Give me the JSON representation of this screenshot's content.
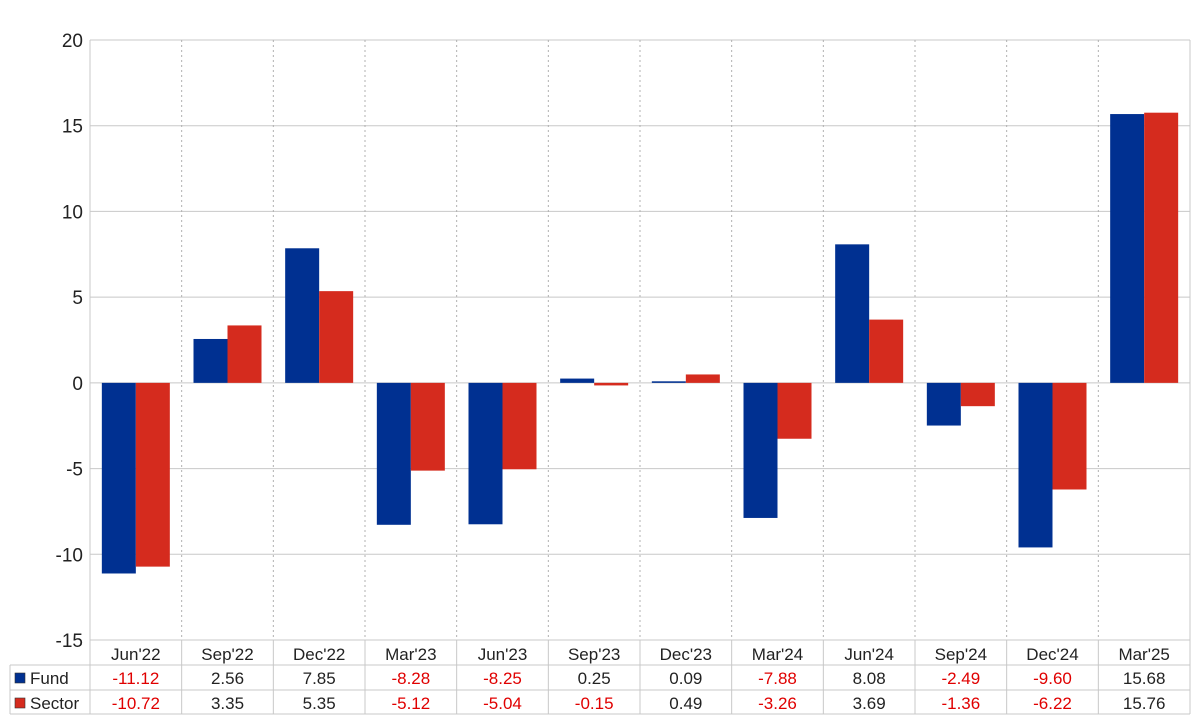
{
  "chart_data": {
    "type": "bar",
    "categories": [
      "Jun'22",
      "Sep'22",
      "Dec'22",
      "Mar'23",
      "Jun'23",
      "Sep'23",
      "Dec'23",
      "Mar'24",
      "Jun'24",
      "Sep'24",
      "Dec'24",
      "Mar'25"
    ],
    "series": [
      {
        "name": "Fund",
        "color": "#003091",
        "values": [
          -11.12,
          2.56,
          7.85,
          -8.28,
          -8.25,
          0.25,
          0.09,
          -7.88,
          8.08,
          -2.49,
          -9.6,
          15.68
        ]
      },
      {
        "name": "Sector",
        "color": "#d52b1e",
        "values": [
          -10.72,
          3.35,
          5.35,
          -5.12,
          -5.04,
          -0.15,
          0.49,
          -3.26,
          3.69,
          -1.36,
          -6.22,
          15.76
        ]
      }
    ],
    "ylim": [
      -15,
      20
    ],
    "yticks": [
      20,
      15,
      10,
      5,
      0,
      -5,
      -10,
      -15
    ],
    "grid": true,
    "legend_placement": "data-table-left",
    "negative_value_color": "#e00000",
    "positive_value_color": "#222222"
  }
}
